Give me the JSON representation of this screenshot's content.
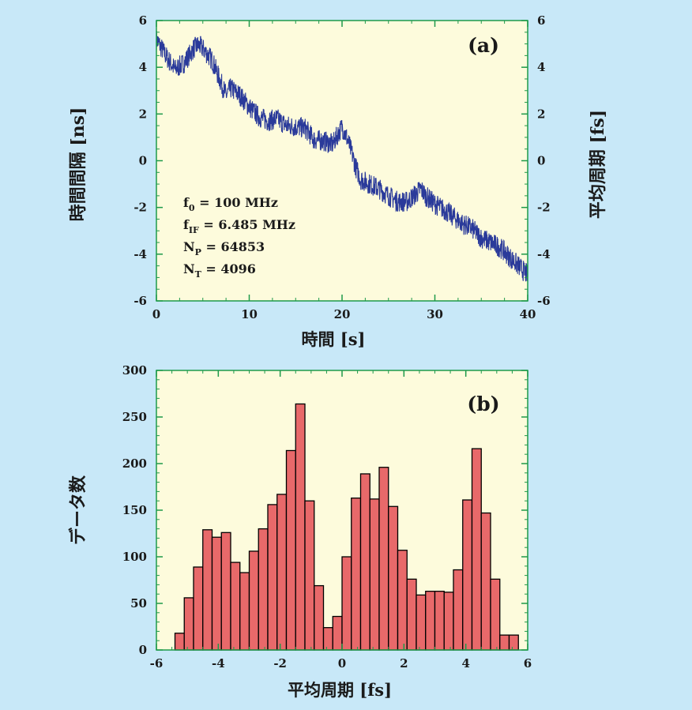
{
  "colors": {
    "background": "#c8e8f8",
    "plot_bg": "#fdfbdc",
    "frame": "#1e9a4a",
    "trace": "#2a3a9a",
    "bar_fill": "#e8696a",
    "bar_edge": "#000000",
    "text": "#1a1a1a"
  },
  "chart_data": [
    {
      "type": "line",
      "panel_label": "(a)",
      "xlabel": "時間 [s]",
      "ylabel_left": "時間間隔 [ns]",
      "ylabel_right": "平均周期 [fs]",
      "xlim": [
        0,
        40
      ],
      "ylim": [
        -6,
        6
      ],
      "x_ticks": [
        "0",
        "10",
        "20",
        "30",
        "40"
      ],
      "y_ticks": [
        "-6",
        "-4",
        "-2",
        "0",
        "2",
        "4",
        "6"
      ],
      "y2_ticks": [
        "-6",
        "-4",
        "-2",
        "0",
        "2",
        "4",
        "6"
      ],
      "annotations": [
        {
          "main": "f",
          "sub": "0",
          "rest": " = 100 MHz"
        },
        {
          "main": "f",
          "sub": "IF",
          "rest": " = 6.485 MHz"
        },
        {
          "main": "N",
          "sub": "P",
          "rest": " = 64853"
        },
        {
          "main": "N",
          "sub": "T",
          "rest": " = 4096"
        }
      ],
      "series": [
        {
          "x": [
            0,
            1,
            2,
            3,
            4,
            4.5,
            5,
            6,
            7,
            7.5,
            8,
            9,
            10,
            11,
            12,
            13,
            14,
            15,
            16,
            17,
            18,
            19,
            19.5,
            20,
            20.5,
            21,
            21.5,
            22,
            23,
            24,
            25,
            26,
            27,
            28,
            28.5,
            29,
            30,
            31,
            32,
            33,
            34,
            35,
            36,
            37,
            38,
            39,
            40
          ],
          "y": [
            5.2,
            4.5,
            3.9,
            4.2,
            4.8,
            4.95,
            4.8,
            4.3,
            3.3,
            2.8,
            3.1,
            2.8,
            2.3,
            1.9,
            1.7,
            1.8,
            1.5,
            1.45,
            1.4,
            0.9,
            0.85,
            0.7,
            1.1,
            1.45,
            1.0,
            0.4,
            -0.3,
            -0.8,
            -1.0,
            -1.2,
            -1.5,
            -1.75,
            -1.75,
            -1.4,
            -1.2,
            -1.5,
            -1.85,
            -2.1,
            -2.4,
            -2.7,
            -2.9,
            -3.3,
            -3.5,
            -3.7,
            -4.1,
            -4.5,
            -4.9
          ],
          "noise_amplitude": 0.45
        }
      ]
    },
    {
      "type": "bar",
      "panel_label": "(b)",
      "xlabel": "平均周期 [fs]",
      "ylabel": "データ数",
      "xlim": [
        -6,
        6
      ],
      "ylim": [
        0,
        300
      ],
      "x_ticks": [
        "-6",
        "-4",
        "-2",
        "0",
        "2",
        "4",
        "6"
      ],
      "y_ticks": [
        "0",
        "50",
        "100",
        "150",
        "200",
        "250",
        "300"
      ],
      "bin_width": 0.3,
      "bin_starts": [
        -5.4,
        -5.1,
        -4.8,
        -4.5,
        -4.2,
        -3.9,
        -3.6,
        -3.3,
        -3.0,
        -2.7,
        -2.4,
        -2.1,
        -1.8,
        -1.5,
        -1.2,
        -0.9,
        -0.6,
        -0.3,
        0.0,
        0.3,
        0.6,
        0.9,
        1.2,
        1.5,
        1.8,
        2.1,
        2.4,
        2.7,
        3.0,
        3.3,
        3.6,
        3.9,
        4.2,
        4.5,
        4.8,
        5.1,
        5.4
      ],
      "values": [
        18,
        56,
        89,
        129,
        121,
        126,
        94,
        83,
        106,
        130,
        156,
        167,
        214,
        264,
        160,
        69,
        24,
        36,
        100,
        163,
        189,
        162,
        196,
        154,
        107,
        76,
        59,
        63,
        63,
        62,
        86,
        161,
        216,
        147,
        76,
        16,
        16
      ]
    }
  ]
}
